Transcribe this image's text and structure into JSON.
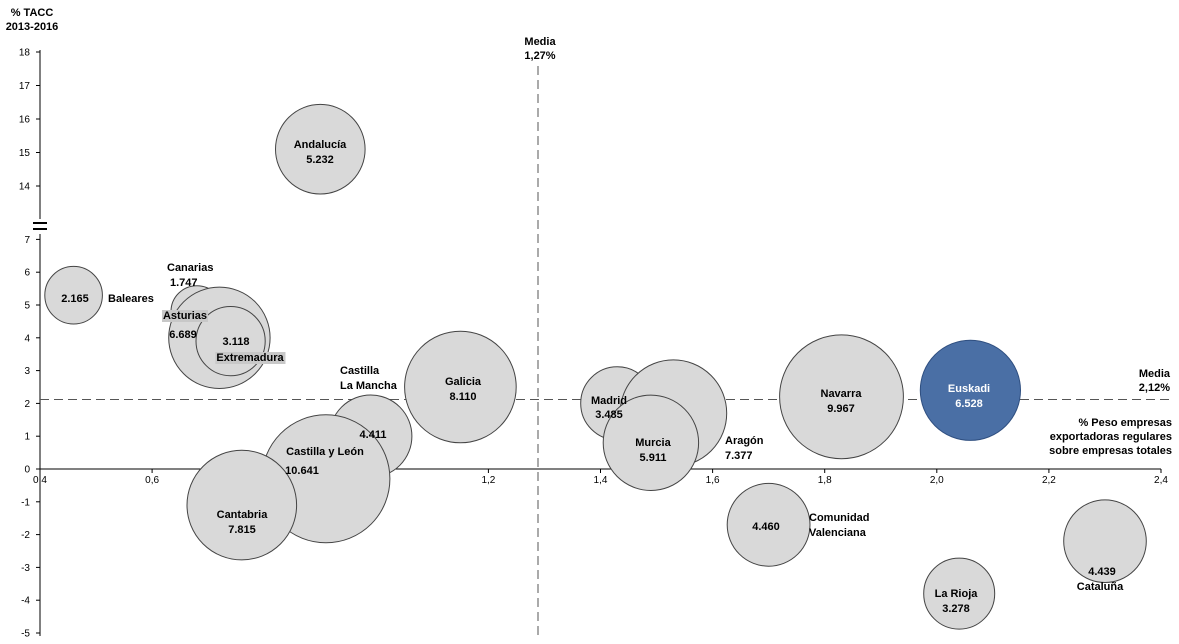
{
  "chart_data": {
    "type": "scatter",
    "title": "",
    "y_title": [
      "% TACC",
      "2013-2016"
    ],
    "x_title": [
      "% Peso empresas",
      "exportadoras regulares",
      "sobre empresas totales"
    ],
    "x_ticks": [
      "0,4",
      "0,6",
      "0,8",
      "1,0",
      "1,2",
      "1,4",
      "1,6",
      "1,8",
      "2,0",
      "2,2",
      "2,4"
    ],
    "y_ticks_low": [
      "-5",
      "-4",
      "-3",
      "-2",
      "-1",
      "0",
      "1",
      "2",
      "3",
      "4",
      "5",
      "6",
      "7"
    ],
    "y_ticks_high": [
      "14",
      "15",
      "16",
      "17",
      "18"
    ],
    "xlim": [
      0.4,
      2.4
    ],
    "ylim": [
      -5,
      18
    ],
    "y_axis_break": "7-14",
    "media_x": {
      "value": 1.27,
      "title": "Media",
      "label": "1,27%"
    },
    "media_y": {
      "value": 2.12,
      "title": "Media",
      "label": "2,12%"
    },
    "highlight_color": "#4a6fa5",
    "bubble_color": "#d9d9d9",
    "points": [
      {
        "name": "Baleares",
        "value_label": "2.165",
        "x": 0.46,
        "y": 5.3,
        "size": 2165
      },
      {
        "name": "Canarias",
        "value_label": "1.747",
        "x": 0.68,
        "y": 4.8,
        "size": 1747
      },
      {
        "name": "Asturias",
        "value_label": "6.689",
        "x": 0.72,
        "y": 4.0,
        "size": 6689
      },
      {
        "name": "Extremadura",
        "value_label": "3.118",
        "x": 0.74,
        "y": 3.9,
        "size": 3118
      },
      {
        "name": "Andalucía",
        "value_label": "5.232",
        "x": 0.9,
        "y": 15.1,
        "size": 5232
      },
      {
        "name": "Castilla La Mancha",
        "value_label": "4.411",
        "x": 0.99,
        "y": 1.0,
        "size": 4411
      },
      {
        "name": "Castilla y León",
        "value_label": "10.641",
        "x": 0.91,
        "y": -0.3,
        "size": 10641
      },
      {
        "name": "Cantabria",
        "value_label": "7.815",
        "x": 0.76,
        "y": -1.1,
        "size": 7815
      },
      {
        "name": "Galicia",
        "value_label": "8.110",
        "x": 1.15,
        "y": 2.5,
        "size": 8110
      },
      {
        "name": "Madrid",
        "value_label": "3.485",
        "x": 1.43,
        "y": 2.0,
        "size": 3485
      },
      {
        "name": "Aragón",
        "value_label": "7.377",
        "x": 1.53,
        "y": 1.7,
        "size": 7377
      },
      {
        "name": "Murcia",
        "value_label": "5.911",
        "x": 1.49,
        "y": 0.8,
        "size": 5911
      },
      {
        "name": "Comunidad Valenciana",
        "value_label": "4.460",
        "x": 1.7,
        "y": -1.7,
        "size": 4460
      },
      {
        "name": "Navarra",
        "value_label": "9.967",
        "x": 1.83,
        "y": 2.2,
        "size": 9967
      },
      {
        "name": "Euskadi",
        "value_label": "6.528",
        "x": 2.06,
        "y": 2.4,
        "size": 6528,
        "highlight": true
      },
      {
        "name": "La Rioja",
        "value_label": "3.278",
        "x": 2.04,
        "y": -3.8,
        "size": 3278
      },
      {
        "name": "Cataluña",
        "value_label": "4.439",
        "x": 2.3,
        "y": -2.2,
        "size": 4439
      }
    ]
  }
}
